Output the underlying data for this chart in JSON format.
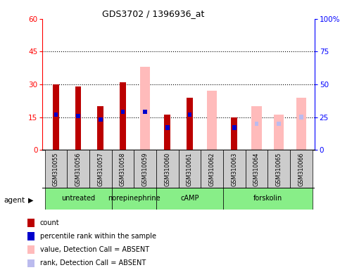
{
  "title": "GDS3702 / 1396936_at",
  "samples": [
    "GSM310055",
    "GSM310056",
    "GSM310057",
    "GSM310058",
    "GSM310059",
    "GSM310060",
    "GSM310061",
    "GSM310062",
    "GSM310063",
    "GSM310064",
    "GSM310065",
    "GSM310066"
  ],
  "agents": [
    {
      "label": "untreated",
      "start": 0,
      "end": 3
    },
    {
      "label": "norepinephrine",
      "start": 3,
      "end": 5
    },
    {
      "label": "cAMP",
      "start": 5,
      "end": 8
    },
    {
      "label": "forskolin",
      "start": 8,
      "end": 12
    }
  ],
  "count_values": [
    30,
    29,
    20,
    31,
    null,
    16,
    24,
    null,
    15,
    null,
    null,
    null
  ],
  "percentile_values": [
    27,
    26,
    23,
    29,
    29,
    17,
    27,
    null,
    17,
    null,
    null,
    null
  ],
  "absent_value_values": [
    null,
    null,
    null,
    null,
    38,
    null,
    null,
    27,
    null,
    20,
    16,
    24
  ],
  "absent_rank_values": [
    null,
    null,
    null,
    null,
    null,
    null,
    null,
    null,
    null,
    20,
    20,
    25
  ],
  "ylim_left": [
    0,
    60
  ],
  "ylim_right": [
    0,
    100
  ],
  "yticks_left": [
    0,
    15,
    30,
    45,
    60
  ],
  "yticks_right": [
    0,
    25,
    50,
    75,
    100
  ],
  "count_color": "#bb0000",
  "percentile_color": "#0000cc",
  "absent_value_color": "#ffbbbb",
  "absent_rank_color": "#bbbbee",
  "agent_bg_color": "#88ee88",
  "sample_bg_color": "#cccccc",
  "legend_items": [
    {
      "color": "#bb0000",
      "label": "count"
    },
    {
      "color": "#0000cc",
      "label": "percentile rank within the sample"
    },
    {
      "color": "#ffbbbb",
      "label": "value, Detection Call = ABSENT"
    },
    {
      "color": "#bbbbee",
      "label": "rank, Detection Call = ABSENT"
    }
  ]
}
